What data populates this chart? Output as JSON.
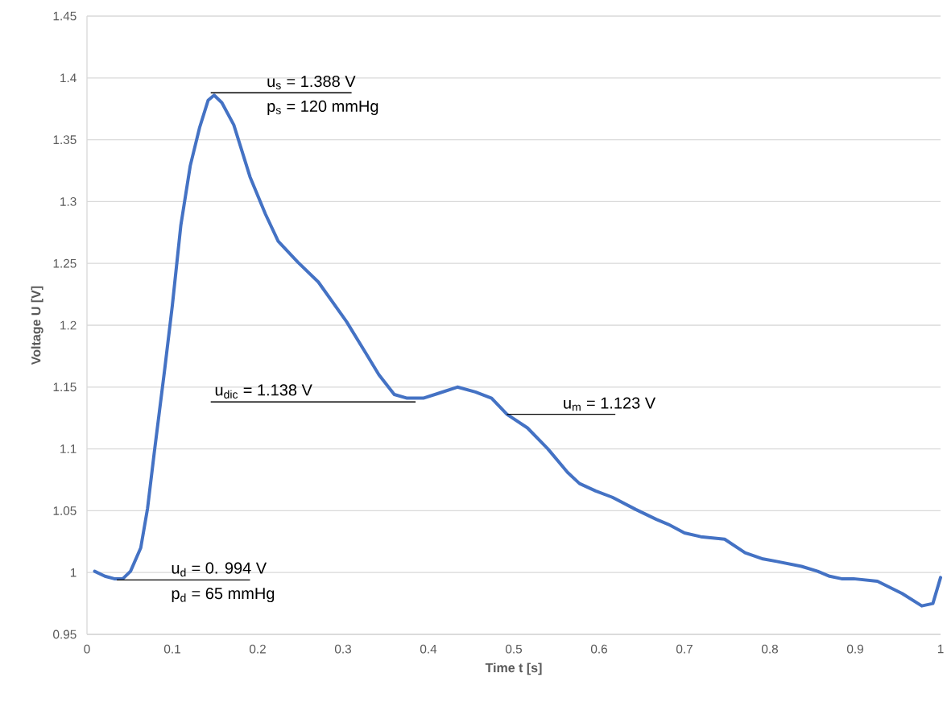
{
  "chart_data": {
    "type": "line",
    "xlabel": "Time t [s]",
    "ylabel": "Voltage U [V]",
    "x": [
      0.009,
      0.021,
      0.032,
      0.042,
      0.051,
      0.063,
      0.071,
      0.079,
      0.091,
      0.1,
      0.11,
      0.121,
      0.132,
      0.142,
      0.149,
      0.158,
      0.172,
      0.191,
      0.209,
      0.224,
      0.247,
      0.271,
      0.304,
      0.327,
      0.342,
      0.36,
      0.375,
      0.394,
      0.412,
      0.434,
      0.455,
      0.474,
      0.492,
      0.516,
      0.54,
      0.563,
      0.577,
      0.596,
      0.615,
      0.643,
      0.667,
      0.681,
      0.7,
      0.719,
      0.747,
      0.771,
      0.792,
      0.808,
      0.837,
      0.856,
      0.87,
      0.884,
      0.898,
      0.926,
      0.955,
      0.978,
      0.991,
      1.0
    ],
    "series": [
      {
        "color": "#4472c4",
        "values": [
          1.001,
          0.997,
          0.995,
          0.995,
          1.001,
          1.02,
          1.052,
          1.098,
          1.164,
          1.216,
          1.281,
          1.329,
          1.36,
          1.382,
          1.386,
          1.38,
          1.362,
          1.32,
          1.29,
          1.268,
          1.251,
          1.235,
          1.203,
          1.177,
          1.16,
          1.144,
          1.141,
          1.141,
          1.145,
          1.15,
          1.146,
          1.141,
          1.128,
          1.117,
          1.1,
          1.081,
          1.072,
          1.066,
          1.061,
          1.051,
          1.043,
          1.039,
          1.032,
          1.029,
          1.027,
          1.016,
          1.011,
          1.009,
          1.005,
          1.001,
          0.997,
          0.995,
          0.995,
          0.993,
          0.983,
          0.973,
          0.975,
          0.996
        ]
      }
    ],
    "xlim": [
      0,
      1
    ],
    "xticks": [
      0,
      0.1,
      0.2,
      0.3,
      0.4,
      0.5,
      0.6,
      0.7,
      0.8,
      0.9,
      1
    ],
    "ylim": [
      0.95,
      1.45
    ],
    "yticks": [
      0.95,
      1,
      1.05,
      1.1,
      1.15,
      1.2,
      1.25,
      1.3,
      1.35,
      1.4,
      1.45
    ],
    "grid": "y",
    "marker": "none",
    "line_style": "solid",
    "annotations": [
      {
        "text": "u$_{s}$ = 1.388 V",
        "x": 0.149,
        "y": 1.388
      },
      {
        "text": "p$_{s}$ = 120 mmHg",
        "x": 0.149,
        "y": 1.388
      },
      {
        "text": "u$_{dic}$ = 1.138 V",
        "x": 0.385,
        "y": 1.138
      },
      {
        "text": "u$_{m}$ = 1.123 V",
        "x": 0.492,
        "y": 1.128
      },
      {
        "text": "u$_{d}$ = 0. 994 V",
        "x": 0.035,
        "y": 0.994
      },
      {
        "text": "p$_{d}$ = 65 mmHg",
        "x": 0.035,
        "y": 0.994
      }
    ]
  }
}
